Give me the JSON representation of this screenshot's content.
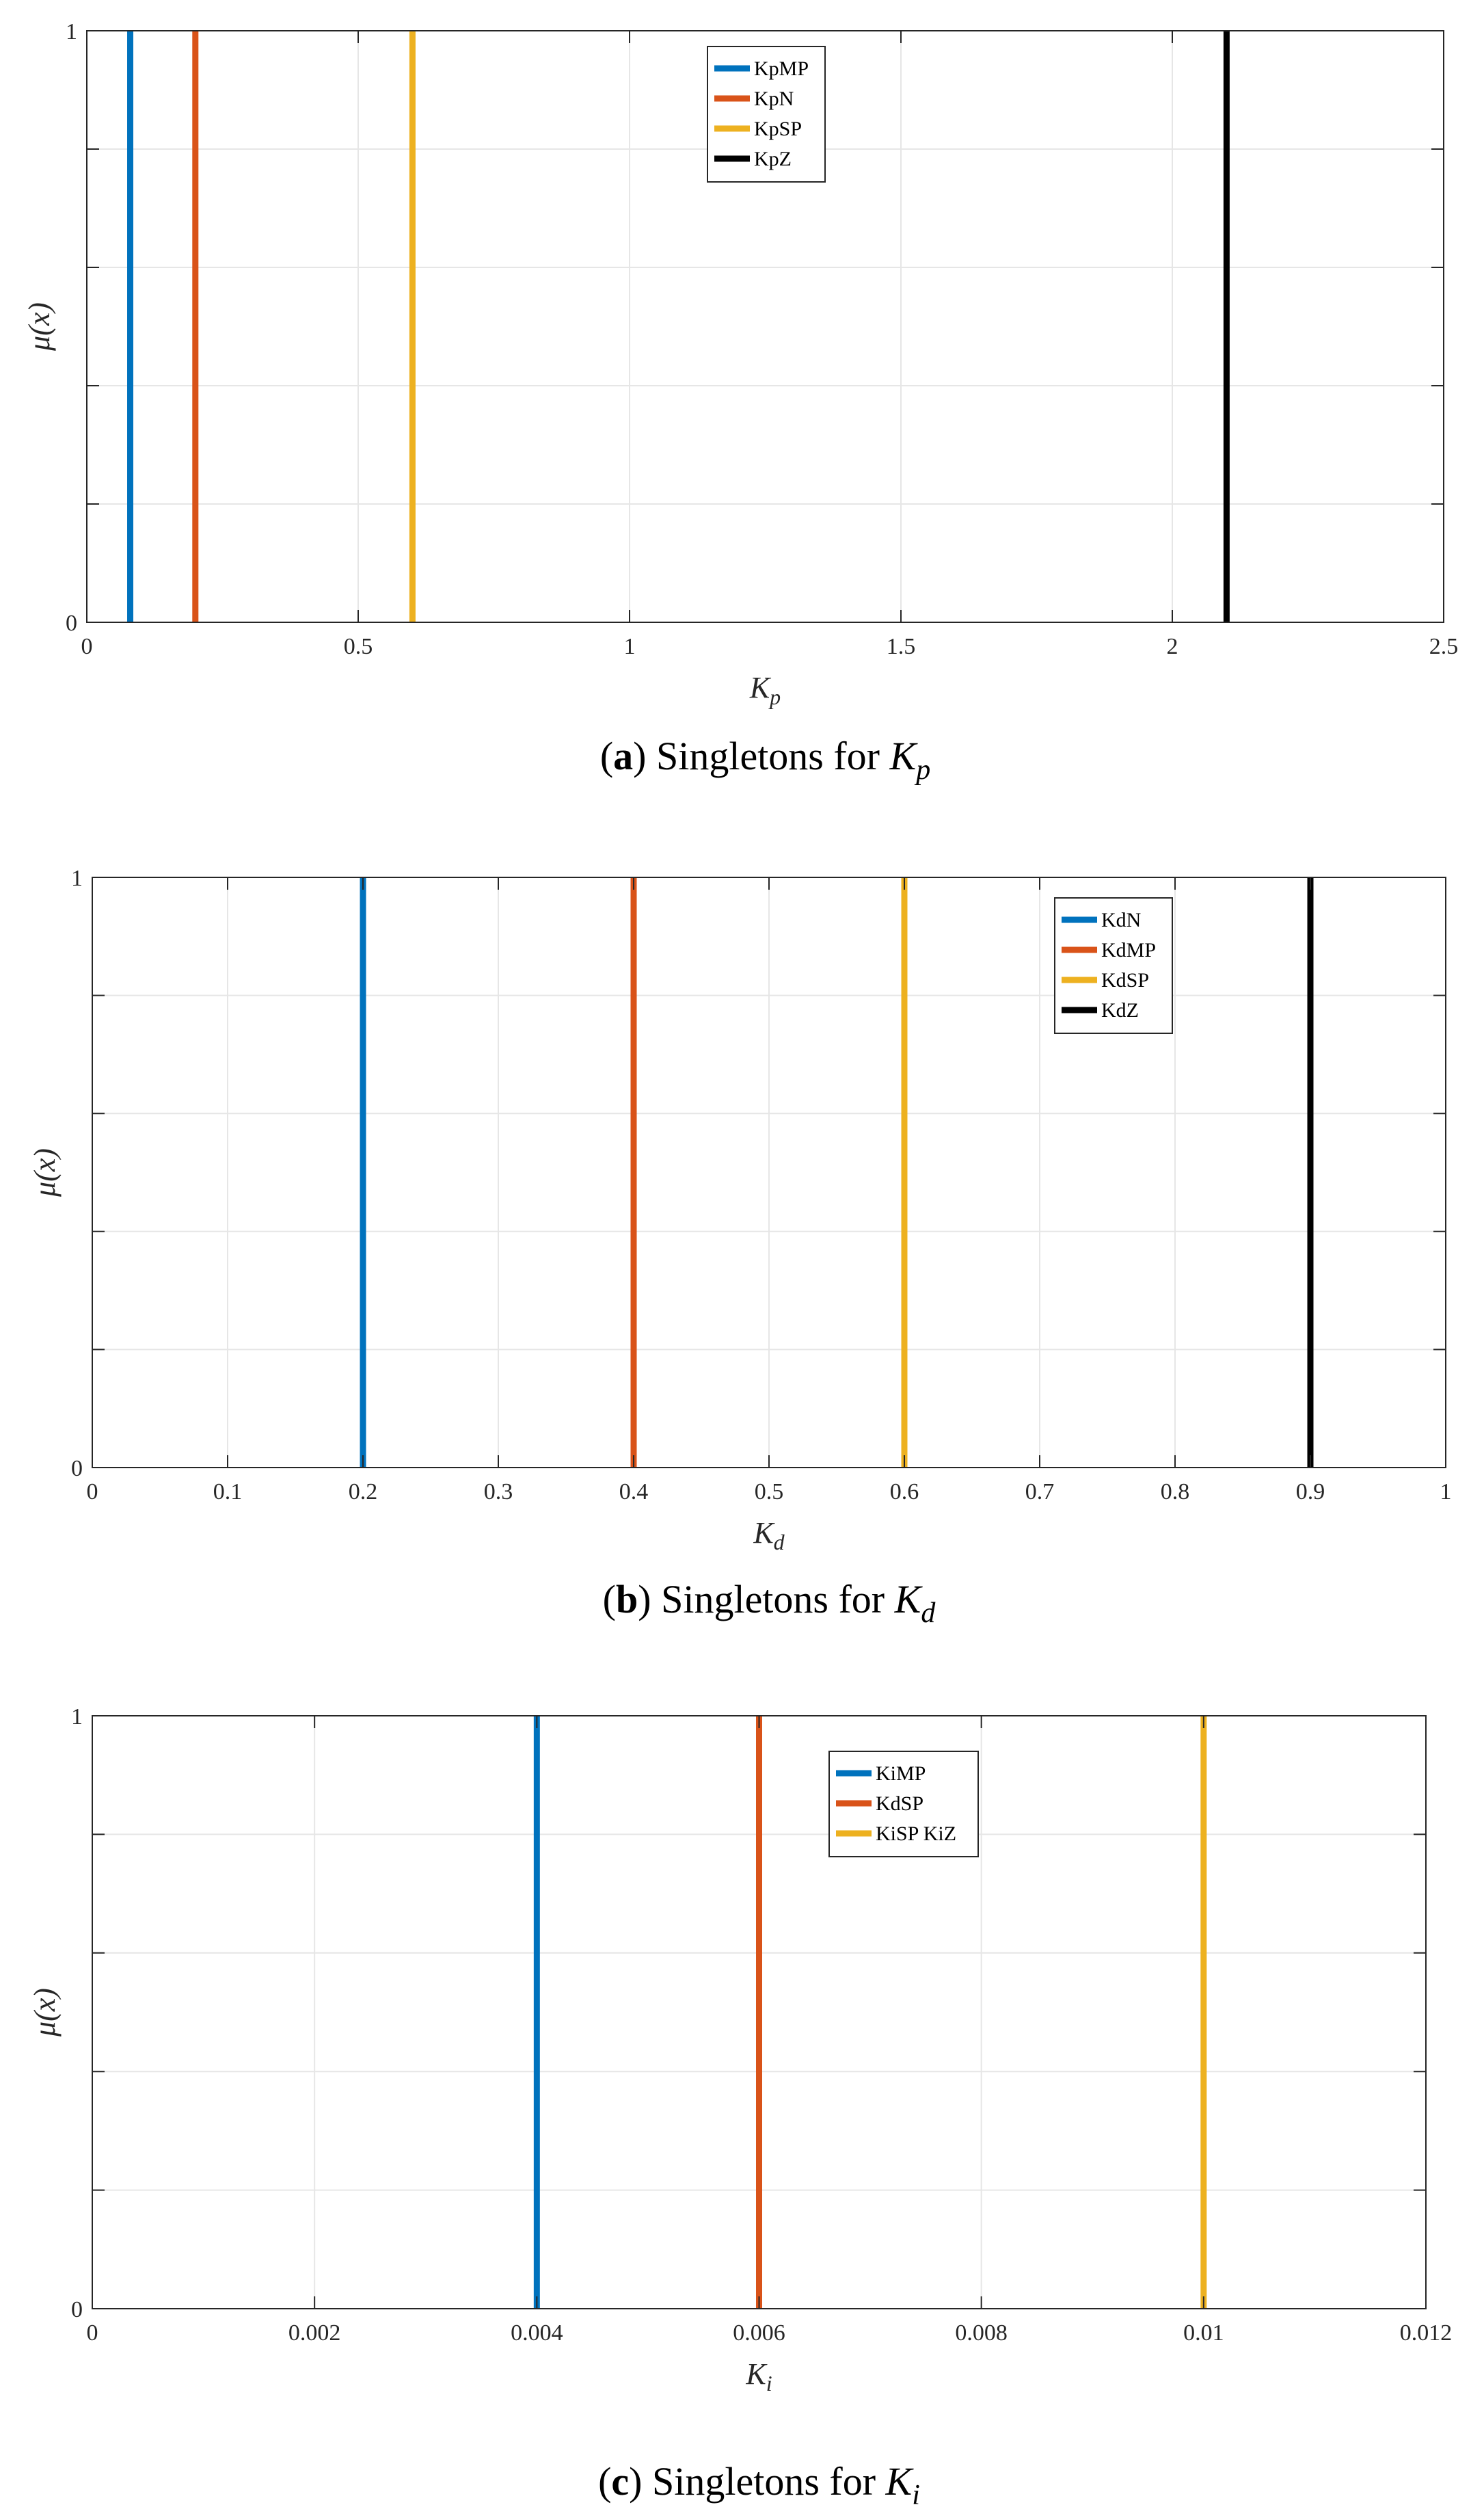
{
  "colors": {
    "blue": "#0072BD",
    "orange": "#D95319",
    "yellow": "#EDB120",
    "black": "#000000",
    "grid": "#e6e6e6",
    "axis": "#262626"
  },
  "chart_data": [
    {
      "type": "line",
      "panel_letter": "a",
      "caption": "Singletons for",
      "caption_symbol": "K",
      "caption_sub": "p",
      "xlabel_symbol": "K",
      "xlabel_sub": "p",
      "ylabel": "μ(x)",
      "xlim": [
        0,
        2.5
      ],
      "ylim": [
        0,
        1
      ],
      "xticks": [
        0,
        0.5,
        1,
        1.5,
        2,
        2.5
      ],
      "xtick_labels": [
        "0",
        "0.5",
        "1",
        "1.5",
        "2",
        "2.5"
      ],
      "yticks": [
        0,
        0.2,
        0.4,
        0.6,
        0.8,
        1
      ],
      "ytick_labels": [
        "0",
        "",
        "",
        "",
        "",
        "1"
      ],
      "grid": true,
      "legend_position": "top-center",
      "series": [
        {
          "name": "KpMP",
          "x": 0.08,
          "color": "#0072BD"
        },
        {
          "name": "KpN",
          "x": 0.2,
          "color": "#D95319"
        },
        {
          "name": "KpSP",
          "x": 0.6,
          "color": "#EDB120"
        },
        {
          "name": "KpZ",
          "x": 2.1,
          "color": "#000000"
        }
      ]
    },
    {
      "type": "line",
      "panel_letter": "b",
      "caption": "Singletons for",
      "caption_symbol": "K",
      "caption_sub": "d",
      "xlabel_symbol": "K",
      "xlabel_sub": "d",
      "ylabel": "μ(x)",
      "xlim": [
        0,
        1
      ],
      "ylim": [
        0,
        1
      ],
      "xticks": [
        0,
        0.1,
        0.2,
        0.3,
        0.4,
        0.5,
        0.6,
        0.7,
        0.8,
        0.9,
        1
      ],
      "xtick_labels": [
        "0",
        "0.1",
        "0.2",
        "0.3",
        "0.4",
        "0.5",
        "0.6",
        "0.7",
        "0.8",
        "0.9",
        "1"
      ],
      "yticks": [
        0,
        0.2,
        0.4,
        0.6,
        0.8,
        1
      ],
      "ytick_labels": [
        "0",
        "",
        "",
        "",
        "",
        "1"
      ],
      "grid": true,
      "legend_position": "top-right",
      "series": [
        {
          "name": "KdN",
          "x": 0.2,
          "color": "#0072BD"
        },
        {
          "name": "KdMP",
          "x": 0.4,
          "color": "#D95319"
        },
        {
          "name": "KdSP",
          "x": 0.6,
          "color": "#EDB120"
        },
        {
          "name": "KdZ",
          "x": 0.9,
          "color": "#000000"
        }
      ]
    },
    {
      "type": "line",
      "panel_letter": "c",
      "caption": "Singletons for",
      "caption_symbol": "K",
      "caption_sub": "i",
      "xlabel_symbol": "K",
      "xlabel_sub": "i",
      "ylabel": "μ(x)",
      "xlim": [
        0,
        0.012
      ],
      "ylim": [
        0,
        1
      ],
      "xticks": [
        0,
        0.002,
        0.004,
        0.006,
        0.008,
        0.01,
        0.012
      ],
      "xtick_labels": [
        "0",
        "0.002",
        "0.004",
        "0.006",
        "0.008",
        "0.01",
        "0.012"
      ],
      "yticks": [
        0,
        0.2,
        0.4,
        0.6,
        0.8,
        1
      ],
      "ytick_labels": [
        "0",
        "",
        "",
        "",
        "",
        "1"
      ],
      "grid": true,
      "legend_position": "top-center",
      "series": [
        {
          "name": "KiMP",
          "x": 0.004,
          "color": "#0072BD"
        },
        {
          "name": "KdSP",
          "x": 0.006,
          "color": "#D95319"
        },
        {
          "name": "KiSP KiZ",
          "x": 0.01,
          "color": "#EDB120"
        }
      ]
    }
  ]
}
